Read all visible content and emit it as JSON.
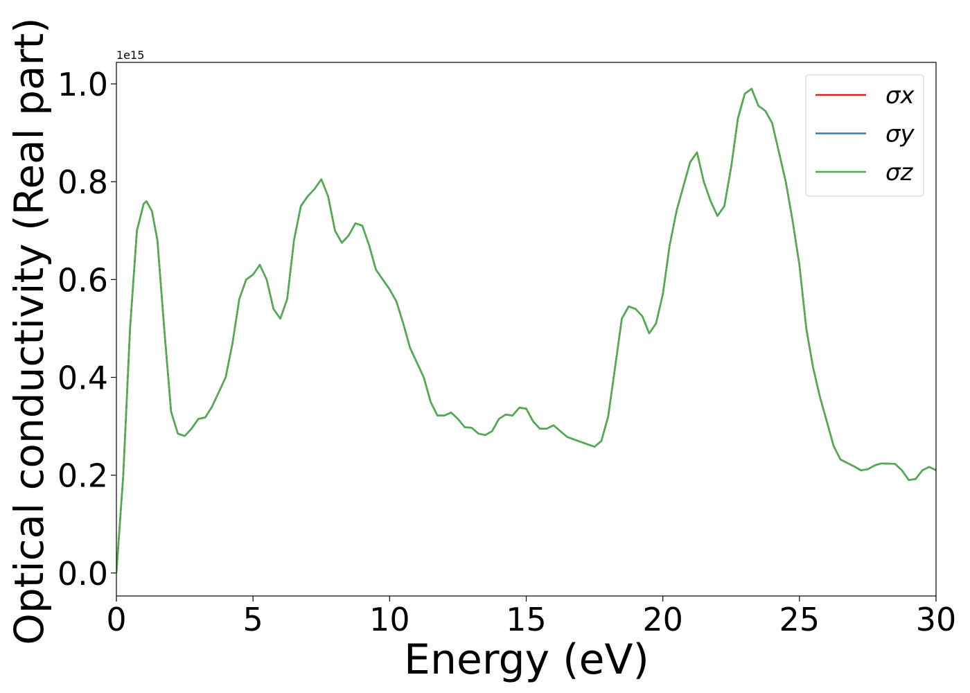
{
  "chart_data": {
    "type": "line",
    "xlabel": "Energy (eV)",
    "ylabel": "Optical conductivity (Real part)",
    "y_offset_label": "1e15",
    "x": [
      0,
      0.25,
      0.5,
      0.75,
      1,
      1.1,
      1.3,
      1.5,
      1.75,
      2,
      2.25,
      2.5,
      2.75,
      3,
      3.25,
      3.5,
      3.75,
      4,
      4.25,
      4.5,
      4.75,
      5,
      5.25,
      5.5,
      5.75,
      6,
      6.25,
      6.5,
      6.75,
      7,
      7.25,
      7.5,
      7.75,
      8,
      8.25,
      8.5,
      8.75,
      9,
      9.25,
      9.5,
      9.75,
      10,
      10.25,
      10.5,
      10.75,
      11,
      11.25,
      11.5,
      11.75,
      12,
      12.25,
      12.5,
      12.75,
      13,
      13.25,
      13.5,
      13.75,
      14,
      14.25,
      14.5,
      14.75,
      15,
      15.25,
      15.5,
      15.75,
      16,
      16.25,
      16.5,
      17,
      17.5,
      17.75,
      18,
      18.25,
      18.5,
      18.75,
      19,
      19.25,
      19.5,
      19.75,
      20,
      20.25,
      20.5,
      20.75,
      21,
      21.25,
      21.5,
      21.75,
      22,
      22.25,
      22.5,
      22.75,
      23,
      23.25,
      23.5,
      23.75,
      24,
      24.25,
      24.5,
      24.75,
      25,
      25.25,
      25.5,
      25.75,
      26,
      26.25,
      26.5,
      26.75,
      27,
      27.25,
      27.5,
      27.75,
      28,
      28.5,
      28.75,
      29,
      29.25,
      29.5,
      29.75,
      30
    ],
    "series": [
      {
        "name": "σx",
        "color": "#e41a1c",
        "values": [
          0,
          0.2,
          0.5,
          0.7,
          0.755,
          0.76,
          0.74,
          0.68,
          0.5,
          0.33,
          0.285,
          0.28,
          0.295,
          0.315,
          0.318,
          0.34,
          0.37,
          0.4,
          0.47,
          0.56,
          0.6,
          0.61,
          0.63,
          0.6,
          0.54,
          0.52,
          0.56,
          0.68,
          0.75,
          0.77,
          0.785,
          0.805,
          0.77,
          0.7,
          0.675,
          0.69,
          0.715,
          0.71,
          0.67,
          0.62,
          0.6,
          0.58,
          0.555,
          0.51,
          0.46,
          0.43,
          0.4,
          0.35,
          0.322,
          0.322,
          0.328,
          0.315,
          0.298,
          0.297,
          0.285,
          0.282,
          0.29,
          0.315,
          0.324,
          0.322,
          0.338,
          0.336,
          0.31,
          0.295,
          0.295,
          0.302,
          0.29,
          0.278,
          0.268,
          0.258,
          0.27,
          0.32,
          0.42,
          0.52,
          0.545,
          0.54,
          0.525,
          0.49,
          0.51,
          0.57,
          0.67,
          0.74,
          0.79,
          0.84,
          0.86,
          0.8,
          0.76,
          0.73,
          0.75,
          0.83,
          0.93,
          0.98,
          0.99,
          0.955,
          0.945,
          0.92,
          0.86,
          0.8,
          0.72,
          0.63,
          0.5,
          0.42,
          0.36,
          0.31,
          0.26,
          0.232,
          0.225,
          0.218,
          0.21,
          0.212,
          0.22,
          0.224,
          0.223,
          0.21,
          0.19,
          0.192,
          0.21,
          0.217,
          0.21
        ]
      },
      {
        "name": "σy",
        "color": "#377eb8",
        "values": [
          0,
          0.2,
          0.5,
          0.7,
          0.755,
          0.76,
          0.74,
          0.68,
          0.5,
          0.33,
          0.285,
          0.28,
          0.295,
          0.315,
          0.318,
          0.34,
          0.37,
          0.4,
          0.47,
          0.56,
          0.6,
          0.61,
          0.63,
          0.6,
          0.54,
          0.52,
          0.56,
          0.68,
          0.75,
          0.77,
          0.785,
          0.805,
          0.77,
          0.7,
          0.675,
          0.69,
          0.715,
          0.71,
          0.67,
          0.62,
          0.6,
          0.58,
          0.555,
          0.51,
          0.46,
          0.43,
          0.4,
          0.35,
          0.322,
          0.322,
          0.328,
          0.315,
          0.298,
          0.297,
          0.285,
          0.282,
          0.29,
          0.315,
          0.324,
          0.322,
          0.338,
          0.336,
          0.31,
          0.295,
          0.295,
          0.302,
          0.29,
          0.278,
          0.268,
          0.258,
          0.27,
          0.32,
          0.42,
          0.52,
          0.545,
          0.54,
          0.525,
          0.49,
          0.51,
          0.57,
          0.67,
          0.74,
          0.79,
          0.84,
          0.86,
          0.8,
          0.76,
          0.73,
          0.75,
          0.83,
          0.93,
          0.98,
          0.99,
          0.955,
          0.945,
          0.92,
          0.86,
          0.8,
          0.72,
          0.63,
          0.5,
          0.42,
          0.36,
          0.31,
          0.26,
          0.232,
          0.225,
          0.218,
          0.21,
          0.212,
          0.22,
          0.224,
          0.223,
          0.21,
          0.19,
          0.192,
          0.21,
          0.217,
          0.21
        ]
      },
      {
        "name": "σz",
        "color": "#4daf4a",
        "values": [
          0,
          0.2,
          0.5,
          0.7,
          0.755,
          0.76,
          0.74,
          0.68,
          0.5,
          0.33,
          0.285,
          0.28,
          0.295,
          0.315,
          0.318,
          0.34,
          0.37,
          0.4,
          0.47,
          0.56,
          0.6,
          0.61,
          0.63,
          0.6,
          0.54,
          0.52,
          0.56,
          0.68,
          0.75,
          0.77,
          0.785,
          0.805,
          0.77,
          0.7,
          0.675,
          0.69,
          0.715,
          0.71,
          0.67,
          0.62,
          0.6,
          0.58,
          0.555,
          0.51,
          0.46,
          0.43,
          0.4,
          0.35,
          0.322,
          0.322,
          0.328,
          0.315,
          0.298,
          0.297,
          0.285,
          0.282,
          0.29,
          0.315,
          0.324,
          0.322,
          0.338,
          0.336,
          0.31,
          0.295,
          0.295,
          0.302,
          0.29,
          0.278,
          0.268,
          0.258,
          0.27,
          0.32,
          0.42,
          0.52,
          0.545,
          0.54,
          0.525,
          0.49,
          0.51,
          0.57,
          0.67,
          0.74,
          0.79,
          0.84,
          0.86,
          0.8,
          0.76,
          0.73,
          0.75,
          0.83,
          0.93,
          0.98,
          0.99,
          0.955,
          0.945,
          0.92,
          0.86,
          0.8,
          0.72,
          0.63,
          0.5,
          0.42,
          0.36,
          0.31,
          0.26,
          0.232,
          0.225,
          0.218,
          0.21,
          0.212,
          0.22,
          0.224,
          0.223,
          0.21,
          0.19,
          0.192,
          0.21,
          0.217,
          0.21
        ]
      }
    ],
    "xlim": [
      0,
      30
    ],
    "xticks": [
      0,
      5,
      10,
      15,
      20,
      25,
      30
    ],
    "ylim": [
      -0.047,
      1.044
    ],
    "yticks": [
      {
        "value": 0,
        "label": "0.0"
      },
      0.2,
      0.4,
      0.6,
      0.8,
      {
        "value": 1,
        "label": "1.0"
      }
    ],
    "grid": false,
    "legend": "upper right"
  }
}
